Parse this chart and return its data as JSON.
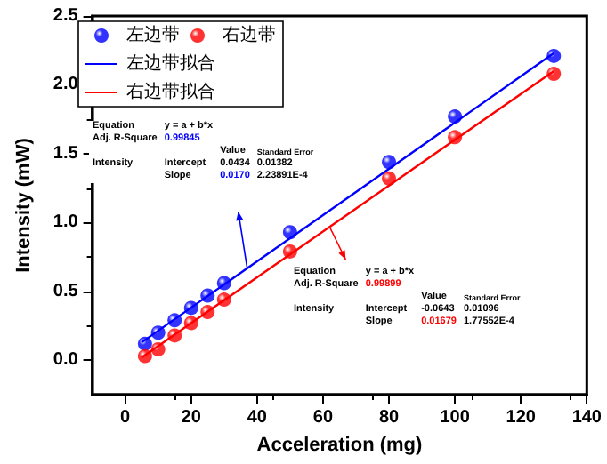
{
  "chart_data": {
    "type": "scatter",
    "xlabel": "Acceleration (mg)",
    "ylabel": "Intensity (mW)",
    "xlim": [
      -10,
      140
    ],
    "xticks": [
      0,
      20,
      40,
      60,
      80,
      100,
      120,
      140
    ],
    "ylim": [
      -0.25,
      2.5
    ],
    "yticks": [
      {
        "value": 0,
        "label": "0.0"
      },
      0.5,
      {
        "value": 1,
        "label": "1.0"
      },
      1.5,
      {
        "value": 2,
        "label": "2.0"
      },
      2.5
    ],
    "grid": false,
    "legend": "top left",
    "series": [
      {
        "name": "左边带",
        "marker": "circle",
        "color": "#0000ff",
        "x": [
          6,
          10,
          15,
          20,
          25,
          30,
          50,
          80,
          100,
          130
        ],
        "values": [
          0.12,
          0.2,
          0.29,
          0.38,
          0.47,
          0.56,
          0.93,
          1.44,
          1.77,
          2.21
        ]
      },
      {
        "name": "右边带",
        "marker": "circle",
        "color": "#ff0000",
        "x": [
          6,
          10,
          15,
          20,
          25,
          30,
          50,
          80,
          100,
          130
        ],
        "values": [
          0.03,
          0.08,
          0.18,
          0.27,
          0.35,
          0.44,
          0.79,
          1.32,
          1.62,
          2.08
        ]
      },
      {
        "name": "左边带拟合",
        "type": "line",
        "marker": "none",
        "color": "#0000ff",
        "x": [
          5,
          130
        ],
        "values": [
          0.13,
          2.23
        ]
      },
      {
        "name": "右边带拟合",
        "type": "line",
        "marker": "none",
        "color": "#ff0000",
        "x": [
          5,
          130
        ],
        "values": [
          0.02,
          2.1
        ]
      }
    ],
    "annotations": [
      "Equation\ty = a + b*x\t\t\nAdj. R-Square\t0.99845\t\t\n\t\tValue\tStandard Error\nIntensity\tIntercept\t0.0434\t0.01382\n\tSlope\t0.0170\t2.23891E-4",
      "Equation\ty = a + b*x\t\t\nAdj. R-Square\t0.99899\t\t\n\t\tValue\tStandard Error\nIntensity\tIntercept\t-0.0643\t0.01096\n\tSlope\t0.01679\t1.77552E-4"
    ]
  }
}
